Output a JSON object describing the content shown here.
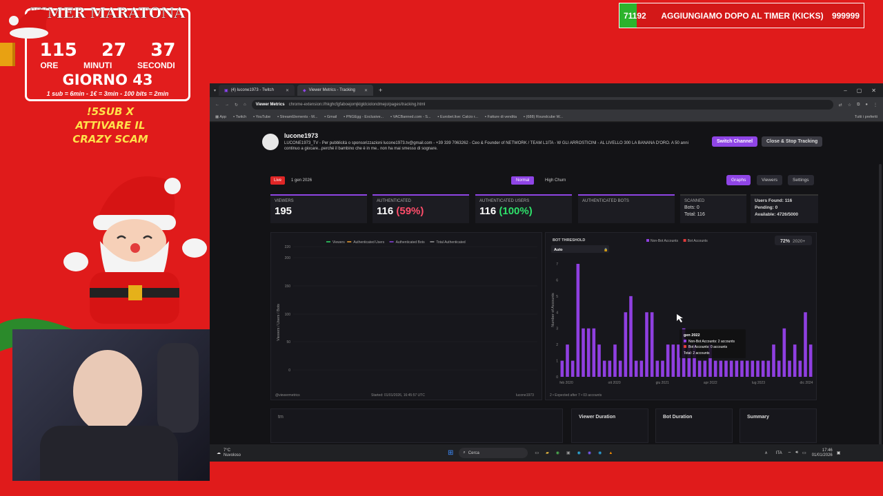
{
  "overlay": {
    "timer_title": "TIMER MARATONA",
    "hours": "115",
    "minutes": "27",
    "seconds": "37",
    "hours_label": "ORE",
    "minutes_label": "MINUTI",
    "seconds_label": "SECONDI",
    "giorno": "GIORNO 43",
    "rule": "1 sub = 6min - 1€ = 3min - 100 bits = 2min",
    "sub_promo_1": "!5SUB X",
    "sub_promo_2": "ATTIVARE IL",
    "sub_promo_3": "CRAZY SCAM",
    "goal_current": "71192",
    "goal_text": "AGGIUNGIAMO DOPO AL TIMER (KICKS)",
    "goal_target": "999999",
    "goal_fraction": 0.0712
  },
  "browser": {
    "tab1": "(4) lucone1973 - Twitch",
    "tab2": "Viewer Metrics - Tracking",
    "url_chip": "Viewer Metrics",
    "url": "chrome-extension://hkghcfgfaboejomjklgldciolondmejo/pages/tracking.html",
    "bookmarks": [
      "App",
      "Twitch",
      "YouTube",
      "StreamElements - M...",
      "Gmail",
      "PNGEgg - Exclusive...",
      "VACBanned.com - S...",
      "Eurobet.live: Calcio r...",
      "Fatture di vendita",
      "(688) Roundcube W..."
    ],
    "all_bookmarks": "Tutti i preferiti"
  },
  "channel": {
    "name": "lucone1973",
    "description": "LUCONE1973_TV - Per pubblicità o sponsorizzazioni lucone1973.tv@gmail.com - +39 339 7063262 - Ceo & Founder of NETWORK / TEAM L1ITA - W GLI ARROSTICINI - AL LIVELLO 300 LA BANANA D'ORO. A 50 anni continuo a giocare...perché il bambino che è in me.. non ha mai smesso di sognare.",
    "switch_label": "Switch Channel",
    "close_label": "Close & Stop Tracking"
  },
  "toolbar": {
    "live": "Live",
    "date": "1 gen 2026",
    "normal": "Normal",
    "high_churn": "High Churn",
    "graphs": "Graphs",
    "viewers": "Viewers",
    "settings": "Settings"
  },
  "stats": {
    "viewers_label": "VIEWERS",
    "viewers": "195",
    "auth_label": "AUTHENTICATED",
    "auth": "116",
    "auth_pct": "(59%)",
    "authusers_label": "AUTHENTICATED USERS",
    "authusers": "116",
    "authusers_pct": "(100%)",
    "authbots_label": "AUTHENTICATED BOTS",
    "scanned_label": "SCANNED",
    "bots": "Bots: 0",
    "total": "Total: 116",
    "users_found": "Users Found: 116",
    "pending": "Pending: 0",
    "available": "Available: 4726/5000"
  },
  "left_chart": {
    "legend": [
      "Viewers",
      "Authenticated Users",
      "Authenticated Bots",
      "Total Authenticated"
    ],
    "ylabel": "Viewers / Users / Bots",
    "yticks": [
      "220",
      "200",
      "150",
      "100",
      "50",
      "0"
    ],
    "footer_left": "@viewermetrics",
    "footer_mid": "Started: 01/01/2026, 16:45:57 UTC",
    "footer_right": "lucone1973"
  },
  "chart_data": {
    "type": "bar",
    "title": "",
    "xlabel": "",
    "ylabel": "Number of Accounts",
    "ylim": [
      0,
      7
    ],
    "yticks": [
      "7",
      "6",
      "5",
      "4",
      "3",
      "2",
      "1",
      "0"
    ],
    "xticks": [
      "feb 2020",
      "ott 2020",
      "giu 2021",
      "apr 2022",
      "lug 2023",
      "dic 2024"
    ],
    "series": [
      {
        "name": "Non-Bot Accounts",
        "color": "#8f3fe0",
        "values": [
          1,
          2,
          1,
          7,
          3,
          3,
          3,
          2,
          1,
          1,
          2,
          1,
          4,
          5,
          1,
          1,
          4,
          4,
          1,
          1,
          2,
          2,
          2,
          3,
          2,
          2,
          1,
          1,
          2,
          1,
          1,
          1,
          1,
          1,
          1,
          1,
          1,
          1,
          1,
          1,
          2,
          1,
          3,
          1,
          2,
          1,
          4,
          2
        ]
      },
      {
        "name": "Bot Accounts",
        "color": "#e03a3a",
        "values": []
      }
    ],
    "threshold_label": "BOT THRESHOLD",
    "threshold_value": "Auto",
    "corner_label": "72%",
    "corner_year": "2020+",
    "footer": "2 • Expected after 7 • 03 accounts",
    "tooltip": {
      "title": "gen 2022",
      "line1": "Non-Bot Accounts: 2 accounts",
      "line2": "Bot Accounts: 0 accounts",
      "line3": "Total: 2 accounts"
    }
  },
  "bottom": {
    "left_title": "tm",
    "viewer_duration": "Viewer Duration",
    "bot_duration": "Bot Duration",
    "summary": "Summary"
  },
  "taskbar": {
    "weather_temp": "7°C",
    "weather_desc": "Nuvoloso",
    "search": "Cerca",
    "lang": "ITA",
    "time": "17:46",
    "date": "01/01/2026"
  }
}
